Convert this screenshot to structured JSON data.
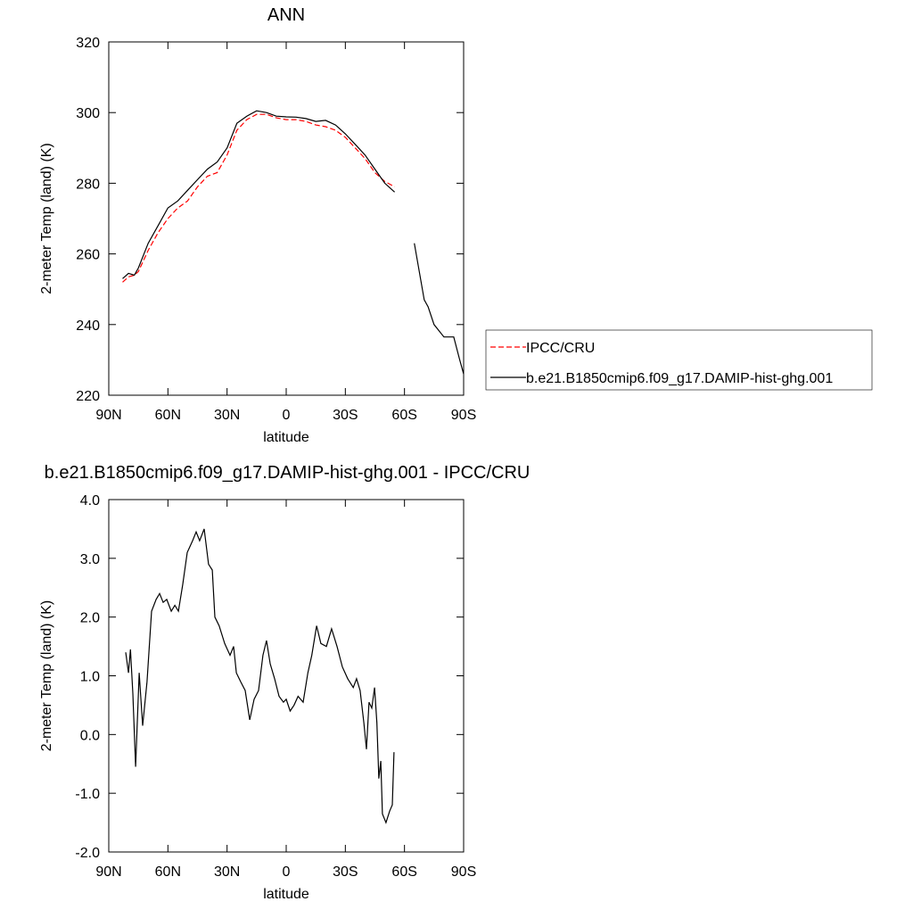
{
  "chart_data": [
    {
      "type": "line",
      "title": "ANN",
      "x_label": "latitude",
      "y_label": "2-meter Temp (land) (K)",
      "x": [
        83,
        80,
        77,
        75,
        70,
        65,
        60,
        55,
        50,
        45,
        40,
        35,
        30,
        25,
        20,
        15,
        10,
        5,
        0,
        -5,
        -10,
        -15,
        -20,
        -25,
        -30,
        -35,
        -40,
        -45,
        -50,
        -55,
        -60,
        -65,
        -70,
        -72,
        -75,
        -80,
        -85,
        -88,
        -90
      ],
      "series": [
        {
          "name": "IPCC/CRU",
          "color": "#ff0000",
          "dash": true,
          "values": [
            252,
            253.5,
            254,
            255,
            261,
            266,
            270,
            273,
            275,
            279,
            282,
            283,
            288,
            295,
            298,
            299.5,
            299.5,
            298.5,
            298,
            298,
            297.5,
            296.5,
            296,
            295,
            293,
            290,
            287,
            283,
            280.5,
            279,
            null,
            null,
            null,
            null,
            null,
            null,
            null,
            null,
            null
          ]
        },
        {
          "name": "b.e21.B1850cmip6.f09_g17.DAMIP-hist-ghg.001",
          "color": "#000000",
          "dash": false,
          "values": [
            253,
            254.5,
            254,
            256,
            263,
            268,
            273,
            275,
            278,
            281,
            284,
            286,
            290,
            297,
            299,
            300.5,
            300,
            299,
            298.8,
            298.7,
            298.3,
            297.5,
            297.8,
            296.5,
            294,
            291,
            288,
            284,
            280,
            277.5,
            null,
            263,
            247,
            245,
            240,
            236.5,
            236.5,
            230,
            226
          ]
        }
      ],
      "xlim": [
        90,
        -90
      ],
      "xticks": [
        {
          "value": 90,
          "label": "90N"
        },
        {
          "value": 60,
          "label": "60N"
        },
        {
          "value": 30,
          "label": "30N"
        },
        0,
        {
          "value": -30,
          "label": "30S"
        },
        {
          "value": -60,
          "label": "60S"
        },
        {
          "value": -90,
          "label": "90S"
        }
      ],
      "ylim": [
        220,
        320
      ],
      "yticks": [
        220,
        240,
        260,
        280,
        300,
        320
      ],
      "legend": "right"
    },
    {
      "type": "line",
      "title": "b.e21.B1850cmip6.f09_g17.DAMIP-hist-ghg.001 - IPCC/CRU",
      "x_label": "latitude",
      "y_label": "2-meter Temp (land) (K)",
      "x": [
        81.4,
        80,
        79,
        77.8,
        76.4,
        74.6,
        72.8,
        70.6,
        68.3,
        66,
        64.2,
        62.4,
        60.6,
        58.3,
        56.5,
        54.7,
        52.5,
        50.2,
        47.5,
        45.7,
        43.9,
        41.6,
        39.4,
        37.5,
        36.2,
        34,
        31.2,
        28.5,
        26.7,
        25.3,
        23.1,
        20.8,
        18.5,
        16.3,
        14,
        11.8,
        10,
        8.1,
        5.9,
        3.6,
        1.4,
        0,
        -2,
        -4,
        -6,
        -8.6,
        -11,
        -13,
        -15.4,
        -17.6,
        -20.4,
        -23,
        -25.8,
        -28.5,
        -31.2,
        -34,
        -35.7,
        -37.5,
        -39.4,
        -40.7,
        -42,
        -43.4,
        -44.8,
        -46,
        -47,
        -48,
        -48.8,
        -50.6,
        -52.5,
        -53.8,
        -54.7
      ],
      "series": [
        {
          "color": "#000000",
          "values": [
            1.4,
            1.05,
            1.45,
            0.7,
            -0.55,
            1.05,
            0.15,
            0.9,
            2.1,
            2.3,
            2.4,
            2.25,
            2.3,
            2.1,
            2.2,
            2.1,
            2.55,
            3.1,
            3.3,
            3.45,
            3.3,
            3.5,
            2.9,
            2.8,
            2.0,
            1.85,
            1.55,
            1.35,
            1.5,
            1.05,
            0.9,
            0.75,
            0.25,
            0.6,
            0.75,
            1.35,
            1.6,
            1.2,
            0.95,
            0.65,
            0.55,
            0.6,
            0.4,
            0.5,
            0.65,
            0.55,
            1.05,
            1.35,
            1.85,
            1.55,
            1.5,
            1.8,
            1.5,
            1.15,
            0.95,
            0.8,
            0.95,
            0.75,
            0.2,
            -0.25,
            0.55,
            0.45,
            0.8,
            0.2,
            -0.75,
            -0.45,
            -1.35,
            -1.5,
            -1.3,
            -1.2,
            -0.3
          ]
        }
      ],
      "xlim": [
        90,
        -90
      ],
      "xticks": [
        {
          "value": 90,
          "label": "90N"
        },
        {
          "value": 60,
          "label": "60N"
        },
        {
          "value": 30,
          "label": "30N"
        },
        0,
        {
          "value": -30,
          "label": "30S"
        },
        {
          "value": -60,
          "label": "60S"
        },
        {
          "value": -90,
          "label": "90S"
        }
      ],
      "ylim": [
        -2,
        4
      ],
      "yticks": [
        {
          "value": -2,
          "label": "-2.0"
        },
        {
          "value": -1,
          "label": "-1.0"
        },
        {
          "value": 0,
          "label": "0.0"
        },
        {
          "value": 1,
          "label": "1.0"
        },
        {
          "value": 2,
          "label": "2.0"
        },
        {
          "value": 3,
          "label": "3.0"
        },
        {
          "value": 4,
          "label": "4.0"
        }
      ]
    }
  ]
}
